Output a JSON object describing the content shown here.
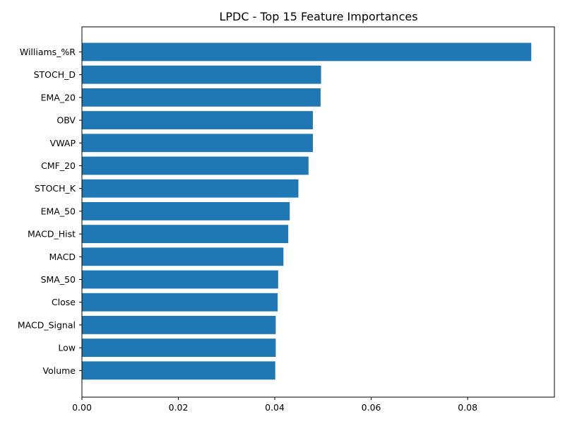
{
  "chart_data": {
    "type": "bar",
    "orientation": "horizontal",
    "title": "LPDC - Top 15 Feature Importances",
    "xlabel": "",
    "ylabel": "",
    "xlim": [
      0,
      0.098
    ],
    "xticks": [
      0.0,
      0.02,
      0.04,
      0.06,
      0.08
    ],
    "xtick_labels": [
      "0.00",
      "0.02",
      "0.04",
      "0.06",
      "0.08"
    ],
    "grid": false,
    "bar_color": "#1f77b4",
    "categories": [
      "Williams_%R",
      "STOCH_D",
      "EMA_20",
      "OBV",
      "VWAP",
      "CMF_20",
      "STOCH_K",
      "EMA_50",
      "MACD_Hist",
      "MACD",
      "SMA_50",
      "Close",
      "MACD_Signal",
      "Low",
      "Volume"
    ],
    "values": [
      0.0932,
      0.0496,
      0.0495,
      0.0479,
      0.0479,
      0.047,
      0.0449,
      0.0431,
      0.0428,
      0.0418,
      0.0407,
      0.0406,
      0.0402,
      0.0402,
      0.0401
    ]
  }
}
